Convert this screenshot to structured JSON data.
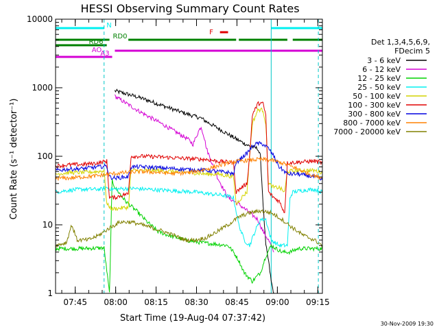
{
  "chart_data": {
    "type": "line",
    "title": "HESSI Observing Summary Count Rates",
    "xlabel": "Start Time (19-Aug-04 07:37:42)",
    "ylabel": "Count Rate (s⁻¹ detector⁻¹)",
    "x_units": "minutes since 07:37:42",
    "xlim": [
      0,
      99
    ],
    "ylim": [
      1,
      10000
    ],
    "yscale": "log",
    "x_ticks": [
      {
        "label": "07:45",
        "x": 7.3
      },
      {
        "label": "08:00",
        "x": 22.3
      },
      {
        "label": "08:15",
        "x": 37.3
      },
      {
        "label": "08:30",
        "x": 52.3
      },
      {
        "label": "08:45",
        "x": 67.3
      },
      {
        "label": "09:00",
        "x": 82.3
      },
      {
        "label": "09:15",
        "x": 97.3
      }
    ],
    "y_ticks": [
      {
        "label": "1",
        "y": 1
      },
      {
        "label": "10",
        "y": 10
      },
      {
        "label": "100",
        "y": 100
      },
      {
        "label": "1000",
        "y": 1000
      },
      {
        "label": "10000",
        "y": 10000
      }
    ],
    "legend": {
      "position": "right",
      "header": [
        "Det 1,3,4,5,6,9,",
        "FDecim 5"
      ]
    },
    "series": [
      {
        "name": "3 - 6 keV",
        "color": "#000000",
        "points": [
          [
            22,
            900
          ],
          [
            26,
            820
          ],
          [
            30,
            740
          ],
          [
            34,
            660
          ],
          [
            38,
            580
          ],
          [
            42,
            510
          ],
          [
            46,
            450
          ],
          [
            50,
            400
          ],
          [
            54,
            360
          ],
          [
            56,
            320
          ],
          [
            60,
            260
          ],
          [
            64,
            210
          ],
          [
            68,
            170
          ],
          [
            72,
            140
          ],
          [
            75,
            130
          ],
          [
            76,
            100
          ],
          [
            77,
            20
          ],
          [
            78,
            5
          ],
          [
            79,
            3
          ],
          [
            80,
            1.5
          ],
          [
            81,
            1
          ]
        ]
      },
      {
        "name": "6 - 12 keV",
        "color": "#d400d4",
        "points": [
          [
            22,
            750
          ],
          [
            26,
            600
          ],
          [
            30,
            480
          ],
          [
            34,
            390
          ],
          [
            38,
            320
          ],
          [
            42,
            260
          ],
          [
            46,
            210
          ],
          [
            49,
            180
          ],
          [
            51,
            150
          ],
          [
            53,
            230
          ],
          [
            54,
            270
          ],
          [
            55,
            200
          ],
          [
            56,
            130
          ],
          [
            58,
            80
          ],
          [
            60,
            50
          ],
          [
            62,
            35
          ],
          [
            64,
            25
          ],
          [
            68,
            20
          ],
          [
            72,
            15
          ],
          [
            75,
            12
          ],
          [
            77,
            8
          ],
          [
            79,
            6
          ],
          [
            81,
            4
          ]
        ]
      },
      {
        "name": "12 - 25 keV",
        "color": "#00d200",
        "points": [
          [
            0,
            4.5
          ],
          [
            10,
            4.5
          ],
          [
            18,
            4.6
          ],
          [
            20,
            1
          ],
          [
            21,
            45
          ],
          [
            22,
            35
          ],
          [
            24,
            28
          ],
          [
            26,
            22
          ],
          [
            30,
            16
          ],
          [
            34,
            11
          ],
          [
            38,
            8
          ],
          [
            42,
            7
          ],
          [
            48,
            6
          ],
          [
            54,
            5.5
          ],
          [
            60,
            5.2
          ],
          [
            64,
            5
          ],
          [
            66,
            4
          ],
          [
            68,
            3
          ],
          [
            70,
            2
          ],
          [
            73,
            1.5
          ],
          [
            76,
            2
          ],
          [
            78,
            3.5
          ],
          [
            80,
            5
          ],
          [
            84,
            4
          ],
          [
            87,
            4
          ],
          [
            90,
            4.5
          ],
          [
            99,
            4.5
          ]
        ]
      },
      {
        "name": "25 - 50 keV",
        "color": "#00f0f0",
        "points": [
          [
            0,
            30
          ],
          [
            5,
            32
          ],
          [
            10,
            33
          ],
          [
            17,
            33
          ],
          [
            19,
            35
          ],
          [
            21,
            33
          ],
          [
            28,
            34
          ],
          [
            34,
            33
          ],
          [
            40,
            32
          ],
          [
            46,
            31
          ],
          [
            52,
            30
          ],
          [
            58,
            28
          ],
          [
            62,
            27
          ],
          [
            66,
            25
          ],
          [
            68,
            10
          ],
          [
            70,
            6
          ],
          [
            72,
            5
          ],
          [
            74,
            8
          ],
          [
            76,
            12
          ],
          [
            78,
            12
          ],
          [
            80,
            6
          ],
          [
            83,
            5
          ],
          [
            86,
            5
          ],
          [
            87,
            25
          ],
          [
            88,
            30
          ],
          [
            92,
            32
          ],
          [
            96,
            33
          ],
          [
            99,
            30
          ]
        ]
      },
      {
        "name": "50 - 100 keV",
        "color": "#d4d400",
        "points": [
          [
            0,
            55
          ],
          [
            5,
            58
          ],
          [
            10,
            58
          ],
          [
            16,
            60
          ],
          [
            18,
            62
          ],
          [
            19,
            20
          ],
          [
            21,
            17
          ],
          [
            27,
            18
          ],
          [
            28,
            62
          ],
          [
            32,
            62
          ],
          [
            38,
            62
          ],
          [
            44,
            60
          ],
          [
            50,
            58
          ],
          [
            56,
            55
          ],
          [
            60,
            55
          ],
          [
            64,
            52
          ],
          [
            66,
            50
          ],
          [
            67,
            20
          ],
          [
            69,
            25
          ],
          [
            71,
            30
          ],
          [
            72,
            100
          ],
          [
            73,
            300
          ],
          [
            75,
            470
          ],
          [
            76,
            480
          ],
          [
            77,
            470
          ],
          [
            78,
            300
          ],
          [
            79,
            40
          ],
          [
            81,
            35
          ],
          [
            83,
            35
          ],
          [
            85,
            30
          ],
          [
            86,
            60
          ],
          [
            90,
            62
          ],
          [
            96,
            62
          ],
          [
            99,
            58
          ]
        ]
      },
      {
        "name": "100 - 300 keV",
        "color": "#e00000",
        "points": [
          [
            0,
            72
          ],
          [
            5,
            75
          ],
          [
            10,
            76
          ],
          [
            16,
            80
          ],
          [
            19,
            85
          ],
          [
            20,
            25
          ],
          [
            22,
            25
          ],
          [
            26,
            28
          ],
          [
            27,
            28
          ],
          [
            28,
            100
          ],
          [
            32,
            100
          ],
          [
            38,
            98
          ],
          [
            44,
            95
          ],
          [
            50,
            92
          ],
          [
            56,
            90
          ],
          [
            60,
            85
          ],
          [
            64,
            82
          ],
          [
            66,
            80
          ],
          [
            67,
            30
          ],
          [
            69,
            35
          ],
          [
            71,
            40
          ],
          [
            72,
            100
          ],
          [
            73,
            400
          ],
          [
            75,
            580
          ],
          [
            76,
            600
          ],
          [
            77,
            580
          ],
          [
            78,
            400
          ],
          [
            79,
            30
          ],
          [
            81,
            25
          ],
          [
            83,
            22
          ],
          [
            85,
            15
          ],
          [
            86,
            80
          ],
          [
            90,
            82
          ],
          [
            96,
            85
          ],
          [
            99,
            80
          ]
        ]
      },
      {
        "name": "300 - 800 keV",
        "color": "#0000e0",
        "points": [
          [
            0,
            62
          ],
          [
            5,
            65
          ],
          [
            10,
            66
          ],
          [
            16,
            70
          ],
          [
            19,
            72
          ],
          [
            20,
            50
          ],
          [
            22,
            48
          ],
          [
            26,
            50
          ],
          [
            27,
            50
          ],
          [
            28,
            70
          ],
          [
            32,
            70
          ],
          [
            38,
            68
          ],
          [
            44,
            66
          ],
          [
            50,
            64
          ],
          [
            56,
            62
          ],
          [
            60,
            60
          ],
          [
            64,
            58
          ],
          [
            66,
            55
          ],
          [
            67,
            80
          ],
          [
            69,
            95
          ],
          [
            71,
            110
          ],
          [
            73,
            140
          ],
          [
            75,
            155
          ],
          [
            77,
            150
          ],
          [
            79,
            130
          ],
          [
            81,
            100
          ],
          [
            83,
            70
          ],
          [
            85,
            60
          ],
          [
            86,
            55
          ],
          [
            90,
            55
          ],
          [
            96,
            50
          ],
          [
            99,
            45
          ]
        ]
      },
      {
        "name": "800 - 7000 keV",
        "color": "#ff8000",
        "points": [
          [
            0,
            48
          ],
          [
            5,
            48
          ],
          [
            10,
            50
          ],
          [
            16,
            52
          ],
          [
            20,
            55
          ],
          [
            26,
            58
          ],
          [
            32,
            60
          ],
          [
            38,
            58
          ],
          [
            44,
            56
          ],
          [
            50,
            58
          ],
          [
            56,
            65
          ],
          [
            60,
            72
          ],
          [
            64,
            80
          ],
          [
            68,
            85
          ],
          [
            72,
            88
          ],
          [
            76,
            90
          ],
          [
            80,
            88
          ],
          [
            84,
            80
          ],
          [
            88,
            70
          ],
          [
            92,
            60
          ],
          [
            96,
            52
          ],
          [
            99,
            48
          ]
        ]
      },
      {
        "name": "7000 - 20000 keV",
        "color": "#808000",
        "points": [
          [
            0,
            5
          ],
          [
            4,
            5.5
          ],
          [
            6,
            10
          ],
          [
            8,
            6
          ],
          [
            12,
            6
          ],
          [
            16,
            7
          ],
          [
            20,
            9
          ],
          [
            24,
            11
          ],
          [
            28,
            11
          ],
          [
            32,
            10
          ],
          [
            36,
            9
          ],
          [
            40,
            8
          ],
          [
            44,
            7
          ],
          [
            48,
            6
          ],
          [
            52,
            6
          ],
          [
            56,
            6.5
          ],
          [
            60,
            8
          ],
          [
            64,
            10
          ],
          [
            68,
            13
          ],
          [
            72,
            15
          ],
          [
            76,
            16
          ],
          [
            80,
            15
          ],
          [
            84,
            12
          ],
          [
            88,
            9
          ],
          [
            92,
            7
          ],
          [
            96,
            6
          ],
          [
            99,
            5
          ]
        ]
      }
    ],
    "flag_bars": [
      {
        "label": "N",
        "color": "#00f0f0",
        "segments": [
          [
            0,
            18
          ],
          [
            80,
            99
          ]
        ]
      },
      {
        "label": "RD0",
        "color": "#008000",
        "segments": [
          [
            0,
            20
          ],
          [
            27,
            67
          ],
          [
            68,
            86
          ],
          [
            88,
            99
          ]
        ]
      },
      {
        "label": "F",
        "color": "#e00000",
        "segments": [
          [
            61,
            64
          ]
        ]
      },
      {
        "label": "RD6",
        "color": "#008000",
        "segments": [
          [
            0,
            19
          ]
        ]
      },
      {
        "label": "AO",
        "color": "#d400d4",
        "segments": [
          [
            0,
            21
          ]
        ]
      },
      {
        "label": "A3",
        "color": "#d400d4",
        "segments": [
          [
            22,
            99
          ]
        ]
      }
    ],
    "vlines": [
      {
        "x": 18,
        "color": "#00c8c8",
        "style": "dashed"
      },
      {
        "x": 80,
        "color": "#00c8c8",
        "style": "solid"
      },
      {
        "x": 97.5,
        "color": "#00c8c8",
        "style": "dashed"
      }
    ],
    "footer": "30-Nov-2009 19:30"
  }
}
